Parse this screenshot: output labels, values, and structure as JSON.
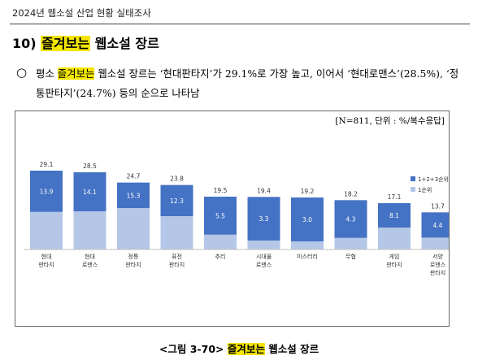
{
  "header": {
    "running_title": "2024년 웹소설 산업 현황 실태조사"
  },
  "section": {
    "number": "10)",
    "title_highlight": "즐겨보는",
    "title_rest": "웹소설 장르"
  },
  "summary": {
    "bullet": "○",
    "before": "평소",
    "highlight": "즐겨보는",
    "after": "웹소설 장르는 ‘현대판타지’가 29.1%로 가장 높고, 이어서 ‘현대로맨스’(28.5%), ‘정통판타지’(24.7%) 등의 순으로 나타남"
  },
  "chart_note": "[N=811, 단위 : %/복수응답]",
  "caption": {
    "prefix": "<그림 3-70>",
    "highlight": "즐겨보는",
    "rest": "웹소설 장르"
  },
  "colors": {
    "total": "#4472c4",
    "first": "#b4c7e7",
    "highlight": "#f4e600"
  },
  "chart_data": {
    "type": "bar",
    "categories": [
      [
        "현대",
        "판타지"
      ],
      [
        "현대",
        "로맨스"
      ],
      [
        "정통",
        "판타지"
      ],
      [
        "퓨전",
        "판타지"
      ],
      [
        "추리"
      ],
      [
        "시대물",
        "로맨스"
      ],
      [
        "미스터리"
      ],
      [
        "무협"
      ],
      [
        "게임",
        "판타지"
      ],
      [
        "서양",
        "로맨스",
        "판타지"
      ]
    ],
    "series": [
      {
        "name": "1+2+3순위",
        "values": [
          29.1,
          28.5,
          24.7,
          23.8,
          19.5,
          19.4,
          19.2,
          18.2,
          17.1,
          13.7
        ]
      },
      {
        "name": "1순위",
        "values": [
          13.9,
          14.1,
          15.3,
          12.3,
          5.5,
          3.3,
          3.0,
          4.3,
          8.1,
          4.4
        ]
      }
    ],
    "title": "",
    "xlabel": "",
    "ylabel": "",
    "ylim": [
      0,
      45
    ],
    "grid": false,
    "legend": "right"
  }
}
